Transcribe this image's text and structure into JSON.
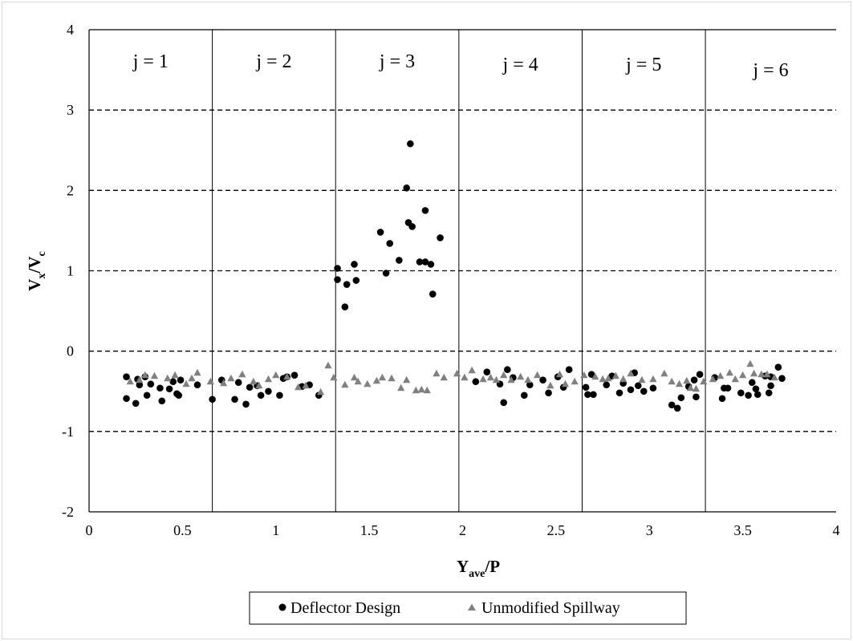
{
  "chart_data": {
    "type": "scatter",
    "xlabel": {
      "main": "Y",
      "sub": "ave",
      "rest": "/P"
    },
    "ylabel": {
      "main1": "V",
      "sub1": "x",
      "slash": "/V",
      "sub2": "c"
    },
    "xlim": [
      0,
      4
    ],
    "ylim": [
      -2,
      4
    ],
    "x_ticks": [
      "0",
      "0.5",
      "1",
      "1.5",
      "2",
      "2.5",
      "3",
      "3.5",
      "4"
    ],
    "y_ticks": [
      "-2",
      "-1",
      "0",
      "1",
      "2",
      "3",
      "4"
    ],
    "y_gridlines": [
      -1,
      0,
      1,
      2,
      3
    ],
    "grid_style": "dashed horizontal",
    "region_dividers": [
      0.66,
      1.32,
      1.98,
      2.64,
      3.3
    ],
    "regions": [
      "j = 1",
      "j = 2",
      "j = 3",
      "j = 4",
      "j = 5",
      "j = 6"
    ],
    "legend_position": "bottom",
    "colors": {
      "deflector": "#000000",
      "unmodified": "#808080"
    },
    "series": [
      {
        "name": "Deflector Design",
        "marker": "circle",
        "points": [
          [
            0.2,
            -0.32
          ],
          [
            0.2,
            -0.59
          ],
          [
            0.25,
            -0.65
          ],
          [
            0.26,
            -0.35
          ],
          [
            0.27,
            -0.42
          ],
          [
            0.3,
            -0.32
          ],
          [
            0.31,
            -0.55
          ],
          [
            0.33,
            -0.41
          ],
          [
            0.38,
            -0.46
          ],
          [
            0.39,
            -0.62
          ],
          [
            0.43,
            -0.47
          ],
          [
            0.45,
            -0.38
          ],
          [
            0.47,
            -0.53
          ],
          [
            0.48,
            -0.55
          ],
          [
            0.49,
            -0.36
          ],
          [
            0.58,
            -0.42
          ],
          [
            0.66,
            -0.6
          ],
          [
            0.71,
            -0.36
          ],
          [
            0.78,
            -0.6
          ],
          [
            0.8,
            -0.39
          ],
          [
            0.84,
            -0.66
          ],
          [
            0.86,
            -0.45
          ],
          [
            0.9,
            -0.43
          ],
          [
            0.92,
            -0.55
          ],
          [
            0.96,
            -0.5
          ],
          [
            1.02,
            -0.55
          ],
          [
            1.04,
            -0.34
          ],
          [
            1.06,
            -0.32
          ],
          [
            1.1,
            -0.3
          ],
          [
            1.14,
            -0.44
          ],
          [
            1.18,
            -0.42
          ],
          [
            1.23,
            -0.55
          ],
          [
            1.33,
            1.03
          ],
          [
            1.33,
            0.89
          ],
          [
            1.37,
            0.55
          ],
          [
            1.38,
            0.83
          ],
          [
            1.42,
            1.08
          ],
          [
            1.43,
            0.88
          ],
          [
            1.56,
            1.48
          ],
          [
            1.59,
            0.97
          ],
          [
            1.61,
            1.34
          ],
          [
            1.66,
            1.13
          ],
          [
            1.7,
            2.03
          ],
          [
            1.71,
            1.6
          ],
          [
            1.72,
            2.58
          ],
          [
            1.73,
            1.55
          ],
          [
            1.77,
            1.11
          ],
          [
            1.8,
            1.75
          ],
          [
            1.8,
            1.11
          ],
          [
            1.83,
            1.08
          ],
          [
            1.84,
            0.71
          ],
          [
            1.88,
            1.41
          ],
          [
            2.07,
            -0.38
          ],
          [
            2.13,
            -0.26
          ],
          [
            2.2,
            -0.41
          ],
          [
            2.22,
            -0.64
          ],
          [
            2.24,
            -0.23
          ],
          [
            2.27,
            -0.33
          ],
          [
            2.33,
            -0.55
          ],
          [
            2.36,
            -0.42
          ],
          [
            2.43,
            -0.36
          ],
          [
            2.46,
            -0.52
          ],
          [
            2.51,
            -0.32
          ],
          [
            2.54,
            -0.45
          ],
          [
            2.57,
            -0.23
          ],
          [
            2.66,
            -0.45
          ],
          [
            2.67,
            -0.54
          ],
          [
            2.69,
            -0.29
          ],
          [
            2.7,
            -0.54
          ],
          [
            2.77,
            -0.42
          ],
          [
            2.8,
            -0.31
          ],
          [
            2.84,
            -0.52
          ],
          [
            2.86,
            -0.4
          ],
          [
            2.9,
            -0.48
          ],
          [
            2.92,
            -0.27
          ],
          [
            2.94,
            -0.43
          ],
          [
            2.97,
            -0.5
          ],
          [
            3.02,
            -0.46
          ],
          [
            3.12,
            -0.67
          ],
          [
            3.15,
            -0.71
          ],
          [
            3.17,
            -0.58
          ],
          [
            3.21,
            -0.44
          ],
          [
            3.24,
            -0.36
          ],
          [
            3.25,
            -0.57
          ],
          [
            3.27,
            -0.29
          ],
          [
            3.35,
            -0.33
          ],
          [
            3.39,
            -0.59
          ],
          [
            3.4,
            -0.46
          ],
          [
            3.42,
            -0.46
          ],
          [
            3.49,
            -0.52
          ],
          [
            3.53,
            -0.55
          ],
          [
            3.55,
            -0.39
          ],
          [
            3.57,
            -0.47
          ],
          [
            3.58,
            -0.54
          ],
          [
            3.62,
            -0.31
          ],
          [
            3.64,
            -0.52
          ],
          [
            3.65,
            -0.43
          ],
          [
            3.65,
            -0.32
          ],
          [
            3.69,
            -0.2
          ],
          [
            3.71,
            -0.34
          ]
        ]
      },
      {
        "name": "Unmodified Spillway",
        "marker": "triangle",
        "points": [
          [
            0.22,
            -0.38
          ],
          [
            0.27,
            -0.36
          ],
          [
            0.3,
            -0.3
          ],
          [
            0.35,
            -0.31
          ],
          [
            0.42,
            -0.34
          ],
          [
            0.46,
            -0.3
          ],
          [
            0.52,
            -0.41
          ],
          [
            0.55,
            -0.34
          ],
          [
            0.58,
            -0.27
          ],
          [
            0.65,
            -0.38
          ],
          [
            0.72,
            -0.4
          ],
          [
            0.76,
            -0.34
          ],
          [
            0.82,
            -0.29
          ],
          [
            0.88,
            -0.38
          ],
          [
            0.91,
            -0.43
          ],
          [
            0.96,
            -0.35
          ],
          [
            1.0,
            -0.3
          ],
          [
            1.06,
            -0.32
          ],
          [
            1.12,
            -0.45
          ],
          [
            1.16,
            -0.43
          ],
          [
            1.24,
            -0.51
          ],
          [
            1.28,
            -0.18
          ],
          [
            1.31,
            -0.33
          ],
          [
            1.37,
            -0.42
          ],
          [
            1.42,
            -0.33
          ],
          [
            1.44,
            -0.38
          ],
          [
            1.49,
            -0.41
          ],
          [
            1.54,
            -0.37
          ],
          [
            1.57,
            -0.33
          ],
          [
            1.62,
            -0.34
          ],
          [
            1.67,
            -0.46
          ],
          [
            1.7,
            -0.36
          ],
          [
            1.75,
            -0.49
          ],
          [
            1.78,
            -0.48
          ],
          [
            1.81,
            -0.49
          ],
          [
            1.86,
            -0.28
          ],
          [
            1.9,
            -0.33
          ],
          [
            1.97,
            -0.28
          ],
          [
            2.01,
            -0.33
          ],
          [
            2.05,
            -0.24
          ],
          [
            2.11,
            -0.35
          ],
          [
            2.15,
            -0.33
          ],
          [
            2.18,
            -0.36
          ],
          [
            2.22,
            -0.3
          ],
          [
            2.26,
            -0.36
          ],
          [
            2.31,
            -0.32
          ],
          [
            2.35,
            -0.36
          ],
          [
            2.4,
            -0.3
          ],
          [
            2.47,
            -0.43
          ],
          [
            2.52,
            -0.29
          ],
          [
            2.55,
            -0.41
          ],
          [
            2.6,
            -0.38
          ],
          [
            2.65,
            -0.3
          ],
          [
            2.71,
            -0.32
          ],
          [
            2.75,
            -0.35
          ],
          [
            2.78,
            -0.34
          ],
          [
            2.82,
            -0.31
          ],
          [
            2.86,
            -0.35
          ],
          [
            2.9,
            -0.28
          ],
          [
            2.96,
            -0.36
          ],
          [
            3.02,
            -0.35
          ],
          [
            3.08,
            -0.28
          ],
          [
            3.12,
            -0.38
          ],
          [
            3.16,
            -0.41
          ],
          [
            3.2,
            -0.37
          ],
          [
            3.22,
            -0.46
          ],
          [
            3.25,
            -0.47
          ],
          [
            3.29,
            -0.38
          ],
          [
            3.34,
            -0.35
          ],
          [
            3.38,
            -0.31
          ],
          [
            3.43,
            -0.27
          ],
          [
            3.46,
            -0.35
          ],
          [
            3.5,
            -0.3
          ],
          [
            3.54,
            -0.16
          ],
          [
            3.56,
            -0.28
          ],
          [
            3.6,
            -0.29
          ],
          [
            3.63,
            -0.29
          ],
          [
            3.67,
            -0.33
          ]
        ]
      }
    ]
  }
}
